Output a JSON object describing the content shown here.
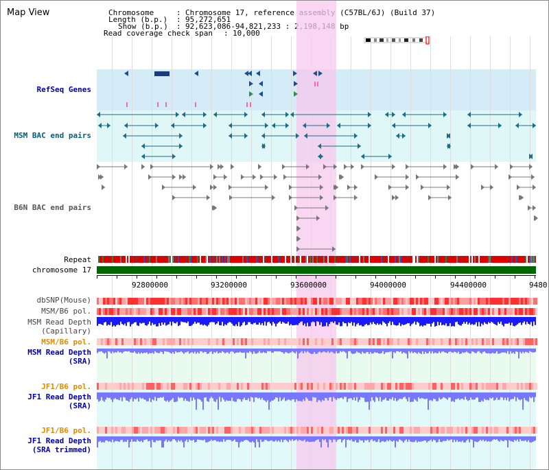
{
  "view_title": "Map View",
  "info": {
    "chromosome_label": "Chromosome",
    "chromosome_value": "Chromosome 17, reference assembly (C57BL/6J) (Build 37)",
    "length_label": "Length (b.p.)",
    "length_value": "95,272,651",
    "show_label": "Show (b.p.)",
    "show_value": "92,623,086-94,821,233 : 2,198,148 bp",
    "coverage_label": "Read coverage check span",
    "coverage_value": "10,000"
  },
  "tracks": {
    "refseq": "RefSeq Genes",
    "msm_bac": "MSM BAC end pairs",
    "b6n_bac": "B6N BAC end pairs",
    "repeat": "Repeat",
    "chromosome": "chromosome 17",
    "dbsnp": "dbSNP(Mouse)",
    "msm_b6_pol": "MSM/B6 pol.",
    "msm_read_depth_cap_1": "MSM Read Depth",
    "msm_read_depth_cap_2": "(Capillary)",
    "msm_b6_pol_2": "MSM/B6 pol.",
    "msm_read_depth_sra_1": "MSM Read Depth",
    "msm_read_depth_sra_2": "(SRA)",
    "jf1_b6_pol": "JF1/B6 pol.",
    "jf1_read_depth_sra_1": "JF1 Read Depth",
    "jf1_read_depth_sra_2": "(SRA)",
    "jf1_b6_pol_2": "JF1/B6 pol.",
    "jf1_read_depth_trim_1": "JF1 Read Depth",
    "jf1_read_depth_trim_2": "(SRA trimmed)"
  },
  "axis_ticks": [
    "92800000",
    "93200000",
    "93600000",
    "94000000",
    "94400000",
    "9480"
  ],
  "colors": {
    "highlight": "#f7c8ee",
    "refseq_bg": "#d4ecf8",
    "msm_bg": "#dff7f7",
    "jf1_bg": "#e2f9f9",
    "msm_sra_bg": "#e9fbee",
    "chromosome_bar": "#006600",
    "depth_dark": "#1a1aff",
    "depth_light": "#7777ff"
  }
}
